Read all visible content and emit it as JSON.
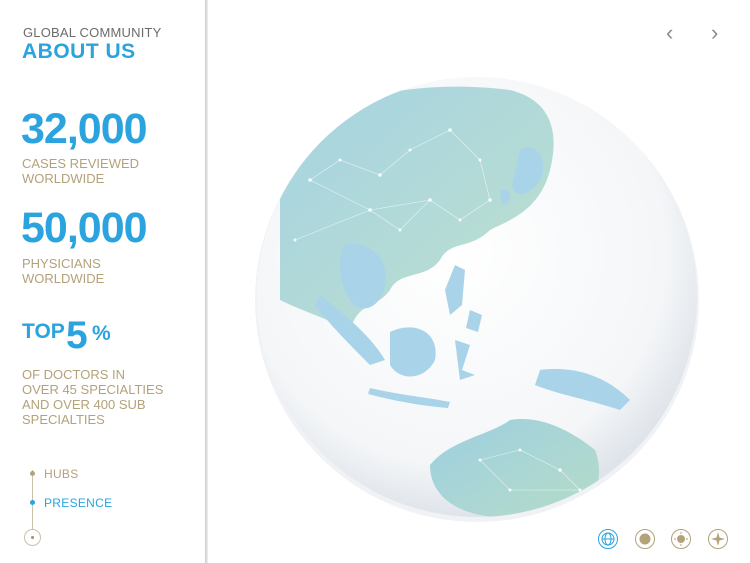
{
  "sidebar": {
    "eyebrow": "GLOBAL COMMUNITY",
    "title": "ABOUT US",
    "stats": [
      {
        "number": "32,000",
        "caption_line1": "CASES REVIEWED",
        "caption_line2": "WORLDWIDE"
      },
      {
        "number": "50,000",
        "caption_line1": "PHYSICIANS",
        "caption_line2": "WORLDWIDE"
      }
    ],
    "top": {
      "word": "TOP",
      "number": "5",
      "percent": "%",
      "caption_lines": [
        "OF DOCTORS IN",
        "OVER 45 SPECIALTIES",
        "AND OVER 400 SUB",
        "SPECIALTIES"
      ]
    },
    "nav": {
      "items": [
        {
          "label": "HUBS",
          "active": false
        },
        {
          "label": "PRESENCE",
          "active": true
        }
      ]
    }
  },
  "controls": {
    "prev_icon": "chevron-left-icon",
    "next_icon": "chevron-right-icon",
    "prev_glyph": "‹",
    "next_glyph": "›"
  },
  "view_modes": [
    {
      "name": "globe-icon",
      "active": true
    },
    {
      "name": "planet-icon",
      "active": false
    },
    {
      "name": "sun-icon",
      "active": false
    },
    {
      "name": "compass-icon",
      "active": false
    }
  ],
  "colors": {
    "accent": "#2aa3de",
    "caption": "#b3a27a",
    "land": "#a6d6cf",
    "ocean": "#ffffff"
  }
}
